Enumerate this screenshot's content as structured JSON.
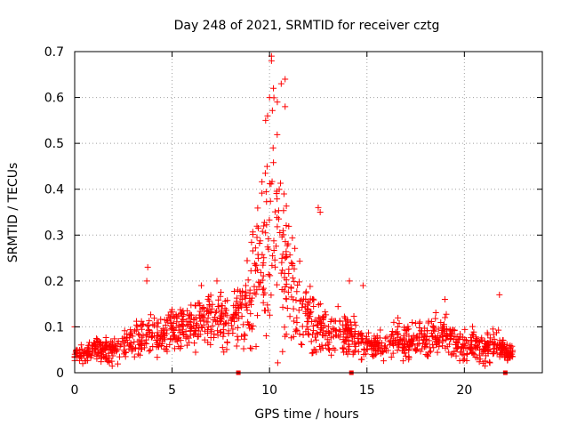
{
  "chart_data": {
    "type": "scatter",
    "title": "Day 248 of 2021, SRMTID for receiver cztg",
    "xlabel": "GPS time / hours",
    "ylabel": "SRMTID / TECUs",
    "xlim": [
      0,
      24
    ],
    "ylim": [
      0,
      0.7
    ],
    "x_ticks": [
      0,
      5,
      10,
      15,
      20
    ],
    "x_tick_labels": [
      "0",
      "5",
      "10",
      "15",
      "20"
    ],
    "y_ticks": [
      0,
      0.1,
      0.2,
      0.3,
      0.4,
      0.5,
      0.6,
      0.7
    ],
    "y_tick_labels": [
      "0",
      "0.1",
      "0.2",
      "0.3",
      "0.4",
      "0.5",
      "0.6",
      "0.7"
    ],
    "grid": true,
    "marker": "plus",
    "color": "#ff0000",
    "baseline_marker_hours": [
      8.4,
      14.2,
      22.1
    ],
    "envelope": {
      "hours": [
        0.0,
        0.5,
        1.0,
        1.5,
        2.0,
        2.5,
        3.0,
        3.5,
        4.0,
        4.5,
        5.0,
        5.5,
        6.0,
        6.5,
        7.0,
        7.5,
        8.0,
        8.5,
        9.0,
        9.5,
        10.0,
        10.5,
        11.0,
        11.5,
        12.0,
        12.5,
        13.0,
        13.5,
        14.0,
        14.5,
        15.0,
        15.5,
        16.0,
        16.5,
        17.0,
        17.5,
        18.0,
        18.5,
        19.0,
        19.5,
        20.0,
        20.5,
        21.0,
        21.5,
        22.0,
        22.5
      ],
      "center": [
        0.04,
        0.04,
        0.05,
        0.05,
        0.05,
        0.06,
        0.07,
        0.08,
        0.08,
        0.08,
        0.09,
        0.1,
        0.1,
        0.11,
        0.11,
        0.12,
        0.12,
        0.13,
        0.16,
        0.22,
        0.3,
        0.28,
        0.2,
        0.15,
        0.12,
        0.1,
        0.09,
        0.09,
        0.08,
        0.07,
        0.06,
        0.06,
        0.06,
        0.07,
        0.07,
        0.07,
        0.07,
        0.08,
        0.08,
        0.07,
        0.06,
        0.06,
        0.06,
        0.06,
        0.05,
        0.04
      ],
      "spread": [
        0.02,
        0.02,
        0.02,
        0.03,
        0.03,
        0.03,
        0.04,
        0.06,
        0.06,
        0.05,
        0.05,
        0.05,
        0.05,
        0.06,
        0.06,
        0.07,
        0.06,
        0.07,
        0.12,
        0.2,
        0.32,
        0.22,
        0.14,
        0.09,
        0.07,
        0.06,
        0.05,
        0.05,
        0.05,
        0.04,
        0.03,
        0.03,
        0.03,
        0.04,
        0.04,
        0.04,
        0.04,
        0.05,
        0.05,
        0.04,
        0.04,
        0.04,
        0.04,
        0.04,
        0.03,
        0.02
      ]
    },
    "notable_points": [
      {
        "x": 0.0,
        "y": 0.1
      },
      {
        "x": 3.75,
        "y": 0.23
      },
      {
        "x": 3.7,
        "y": 0.2
      },
      {
        "x": 10.1,
        "y": 0.69
      },
      {
        "x": 10.1,
        "y": 0.68
      },
      {
        "x": 10.4,
        "y": 0.59
      },
      {
        "x": 10.6,
        "y": 0.63
      },
      {
        "x": 10.8,
        "y": 0.64
      },
      {
        "x": 10.8,
        "y": 0.58
      },
      {
        "x": 10.2,
        "y": 0.62
      },
      {
        "x": 10.0,
        "y": 0.6
      },
      {
        "x": 9.9,
        "y": 0.56
      },
      {
        "x": 9.8,
        "y": 0.55
      },
      {
        "x": 12.5,
        "y": 0.36
      },
      {
        "x": 12.6,
        "y": 0.35
      },
      {
        "x": 14.1,
        "y": 0.2
      },
      {
        "x": 14.8,
        "y": 0.19
      },
      {
        "x": 19.0,
        "y": 0.16
      },
      {
        "x": 21.8,
        "y": 0.17
      },
      {
        "x": 6.5,
        "y": 0.19
      },
      {
        "x": 7.3,
        "y": 0.2
      }
    ],
    "point_count": 1400,
    "random_seed": 248
  }
}
